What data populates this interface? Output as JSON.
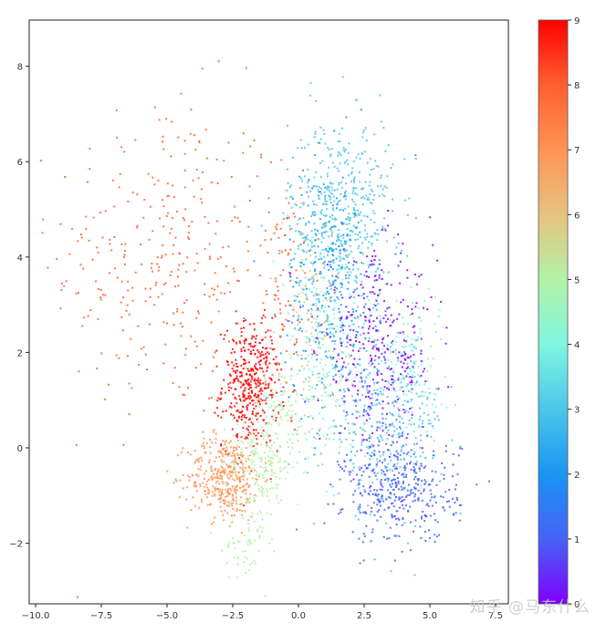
{
  "chart_data": {
    "type": "scatter",
    "title": "",
    "xlabel": "",
    "ylabel": "",
    "xlim": [
      -10.5,
      7.7
    ],
    "ylim": [
      -3.3,
      9.0
    ],
    "xticks": [
      -10.0,
      -7.5,
      -5.0,
      -2.5,
      0.0,
      2.5,
      5.0,
      7.5
    ],
    "xtick_labels": [
      "−10.0",
      "−7.5",
      "−5.0",
      "−2.5",
      "0.0",
      "2.5",
      "5.0",
      "7.5"
    ],
    "yticks": [
      -2,
      0,
      2,
      4,
      6,
      8
    ],
    "ytick_labels": [
      "−2",
      "0",
      "2",
      "4",
      "6",
      "8"
    ],
    "grid": false,
    "colormap": "rainbow",
    "colorbar": {
      "min": 0,
      "max": 9,
      "ticks": [
        0,
        1,
        2,
        3,
        4,
        5,
        6,
        7,
        8,
        9
      ],
      "tick_labels": [
        "0",
        "1",
        "2",
        "3",
        "4",
        "5",
        "6",
        "7",
        "8",
        "9"
      ],
      "stops": [
        "#8000ff",
        "#4662f7",
        "#1995f2",
        "#4cc6e9",
        "#7ff6e0",
        "#b2f2a6",
        "#e6c37f",
        "#ff9455",
        "#ff5f30",
        "#ff0000"
      ]
    },
    "marker_size": 2,
    "clusters": [
      {
        "label": 8,
        "cx": -5.0,
        "cy": 4.0,
        "sx": 2.2,
        "sy": 1.7,
        "n": 330,
        "note": "sparse scattered orange-red points"
      },
      {
        "label": 8,
        "cx": -0.6,
        "cy": 3.5,
        "sx": 0.35,
        "sy": 1.0,
        "n": 70
      },
      {
        "label": 9,
        "cx": -1.8,
        "cy": 1.3,
        "sx": 0.55,
        "sy": 0.65,
        "n": 420
      },
      {
        "label": 7,
        "cx": -2.8,
        "cy": -0.6,
        "sx": 0.7,
        "sy": 0.45,
        "n": 380
      },
      {
        "label": 5,
        "cx": -1.4,
        "cy": -0.3,
        "sx": 0.6,
        "sy": 0.7,
        "n": 230
      },
      {
        "label": 5,
        "cx": -2.1,
        "cy": -2.1,
        "sx": 0.4,
        "sy": 0.35,
        "n": 40
      },
      {
        "label": 5,
        "cx": -0.6,
        "cy": 0.9,
        "sx": 0.4,
        "sy": 0.4,
        "n": 60
      },
      {
        "label": 3,
        "cx": 1.6,
        "cy": 4.9,
        "sx": 1.0,
        "sy": 1.0,
        "n": 500
      },
      {
        "label": 2,
        "cx": 1.2,
        "cy": 3.3,
        "sx": 0.9,
        "sy": 1.3,
        "n": 320
      },
      {
        "label": 4,
        "cx": 1.0,
        "cy": 2.0,
        "sx": 0.9,
        "sy": 1.2,
        "n": 230
      },
      {
        "label": 6,
        "cx": 0.6,
        "cy": 2.6,
        "sx": 0.6,
        "sy": 1.2,
        "n": 90
      },
      {
        "label": 0,
        "cx": 3.0,
        "cy": 2.0,
        "sx": 1.1,
        "sy": 1.0,
        "n": 340
      },
      {
        "label": 3,
        "cx": 3.3,
        "cy": 0.5,
        "sx": 1.1,
        "sy": 0.9,
        "n": 360
      },
      {
        "label": 4,
        "cx": 4.2,
        "cy": 1.8,
        "sx": 0.7,
        "sy": 0.8,
        "n": 120
      },
      {
        "label": 1,
        "cx": 3.9,
        "cy": -0.9,
        "sx": 1.1,
        "sy": 0.55,
        "n": 380
      }
    ]
  },
  "watermark": "知乎 @马东什么"
}
